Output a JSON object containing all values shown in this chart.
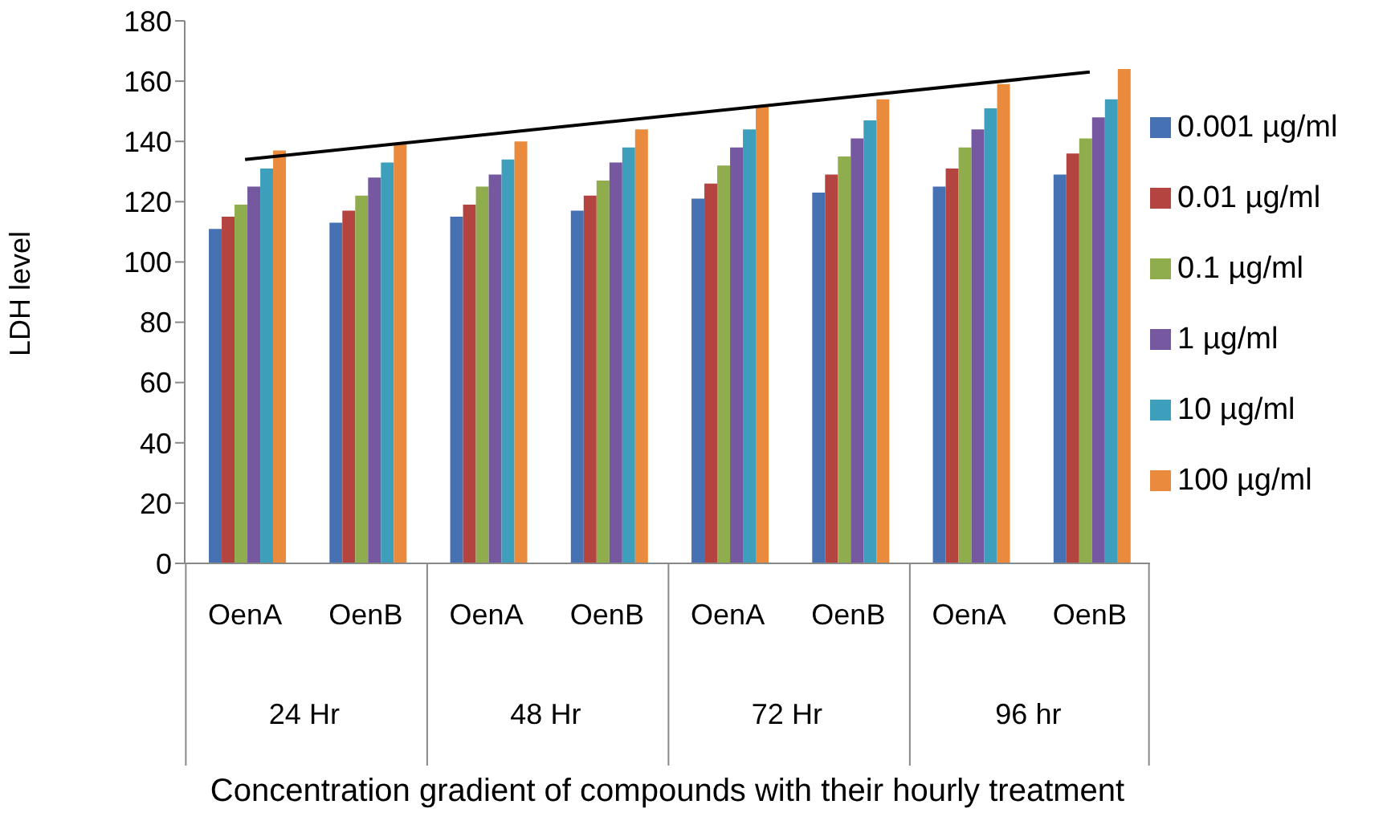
{
  "chart_data": {
    "type": "bar",
    "xlabel": "Concentration gradient of compounds with their hourly treatment",
    "ylabel": "LDH level",
    "categories": [
      "OenA",
      "OenB",
      "OenA",
      "OenB",
      "OenA",
      "OenB",
      "OenA",
      "OenB"
    ],
    "annotations": [
      "24 Hr",
      "48 Hr",
      "72 Hr",
      "96 hr"
    ],
    "series": [
      {
        "name": "0.001 µg/ml",
        "color": "#4672b4",
        "values": [
          111,
          113,
          115,
          117,
          121,
          123,
          125,
          129
        ]
      },
      {
        "name": "0.01 µg/ml",
        "color": "#b4443f",
        "values": [
          115,
          117,
          119,
          122,
          126,
          129,
          131,
          136
        ]
      },
      {
        "name": "0.1 µg/ml",
        "color": "#8fad4d",
        "values": [
          119,
          122,
          125,
          127,
          132,
          135,
          138,
          141
        ]
      },
      {
        "name": "1 µg/ml",
        "color": "#7558a0",
        "values": [
          125,
          128,
          129,
          133,
          138,
          141,
          144,
          148
        ]
      },
      {
        "name": "10 µg/ml",
        "color": "#3e9fbc",
        "values": [
          131,
          133,
          134,
          138,
          144,
          147,
          151,
          154
        ]
      },
      {
        "name": "100 µg/ml",
        "color": "#ea8a3c",
        "values": [
          137,
          139,
          140,
          144,
          152,
          154,
          159,
          164
        ]
      },
      {
        "type": "line",
        "color": "#000000",
        "values": [
          134,
          null,
          null,
          null,
          null,
          null,
          null,
          163
        ]
      }
    ],
    "ylim": [
      0,
      180
    ],
    "yticks": [
      0,
      20,
      40,
      60,
      80,
      100,
      120,
      140,
      160,
      180
    ],
    "grid": false,
    "legend": "right"
  }
}
